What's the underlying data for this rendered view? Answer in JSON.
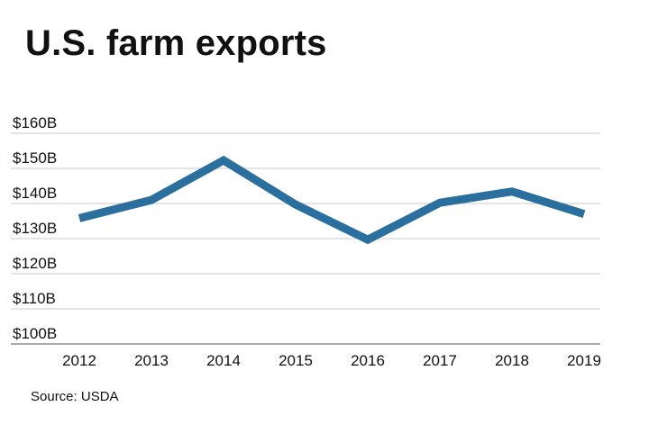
{
  "chart_data": {
    "type": "line",
    "title": "U.S. farm exports",
    "x": [
      "2012",
      "2013",
      "2014",
      "2015",
      "2016",
      "2017",
      "2018",
      "2019"
    ],
    "series": [
      {
        "name": "Farm exports",
        "values": [
          135.8,
          141.0,
          152.3,
          139.7,
          129.7,
          140.2,
          143.4,
          137.0
        ],
        "color": "#2a6f9e"
      }
    ],
    "y_ticks": [
      100,
      110,
      120,
      130,
      140,
      150,
      160
    ],
    "y_tick_labels": [
      "$100B",
      "$110B",
      "$120B",
      "$130B",
      "$140B",
      "$150B",
      "$160B"
    ],
    "ylim": [
      100,
      160
    ],
    "xlabel": "",
    "ylabel": "",
    "grid": true,
    "legend": "none",
    "grid_color": "#c8c8c8",
    "axis_color": "#555555"
  },
  "source": "Source: USDA"
}
